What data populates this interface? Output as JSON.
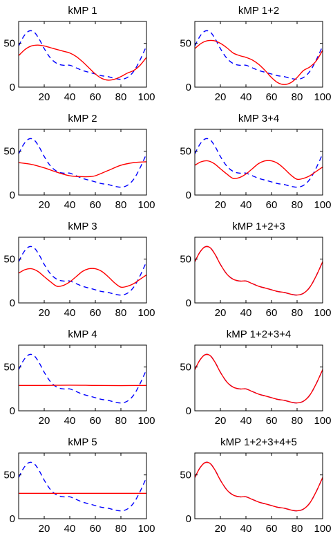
{
  "chart_data": [
    {
      "type": "line",
      "title": "kMP 1",
      "xlim": [
        0,
        100
      ],
      "ylim": [
        0,
        75
      ],
      "xticks": [
        20,
        40,
        60,
        80,
        100
      ],
      "yticks": [
        0,
        50
      ],
      "xtick_labels": [
        "20",
        "40",
        "60",
        "80",
        "100"
      ],
      "ytick_labels": [
        "0",
        "50"
      ],
      "series": [
        {
          "color": "#0000ff",
          "style": "dashed",
          "x": [
            0,
            4,
            8,
            12,
            16,
            20,
            25,
            30,
            35,
            40,
            45,
            50,
            55,
            60,
            65,
            70,
            75,
            80,
            85,
            90,
            95,
            100
          ],
          "y": [
            47,
            58,
            64,
            63,
            55,
            44,
            33,
            27,
            25,
            25,
            22,
            19,
            17,
            15,
            13,
            12,
            10,
            9,
            11,
            18,
            31,
            47
          ]
        },
        {
          "color": "#ff0000",
          "style": "solid",
          "x": [
            0,
            5,
            10,
            15,
            20,
            25,
            30,
            35,
            40,
            45,
            50,
            55,
            60,
            65,
            70,
            75,
            80,
            85,
            90,
            95,
            100
          ],
          "y": [
            36,
            43,
            47,
            48,
            47,
            45,
            43,
            41,
            39,
            35,
            29,
            22,
            15,
            10,
            8,
            9,
            12,
            16,
            19,
            25,
            34
          ]
        }
      ]
    },
    {
      "type": "line",
      "title": "kMP 1+2",
      "xlim": [
        0,
        100
      ],
      "ylim": [
        0,
        75
      ],
      "xticks": [
        20,
        40,
        60,
        80,
        100
      ],
      "yticks": [
        0,
        50
      ],
      "xtick_labels": [
        "20",
        "40",
        "60",
        "80",
        "100"
      ],
      "ytick_labels": [
        "0",
        "50"
      ],
      "series": [
        {
          "color": "#0000ff",
          "style": "dashed",
          "x": [
            0,
            4,
            8,
            12,
            16,
            20,
            25,
            30,
            35,
            40,
            45,
            50,
            55,
            60,
            65,
            70,
            75,
            80,
            85,
            90,
            95,
            100
          ],
          "y": [
            47,
            58,
            64,
            63,
            55,
            44,
            33,
            27,
            25,
            25,
            22,
            19,
            17,
            15,
            13,
            12,
            10,
            9,
            11,
            18,
            31,
            47
          ]
        },
        {
          "color": "#ff0000",
          "style": "solid",
          "x": [
            0,
            5,
            10,
            15,
            20,
            25,
            30,
            35,
            40,
            45,
            50,
            55,
            60,
            65,
            70,
            75,
            80,
            85,
            90,
            95,
            100
          ],
          "y": [
            44,
            50,
            53,
            53,
            50,
            45,
            39,
            36,
            34,
            31,
            26,
            19,
            11,
            5,
            3,
            5,
            11,
            19,
            23,
            30,
            42
          ]
        }
      ]
    },
    {
      "type": "line",
      "title": "kMP 2",
      "xlim": [
        0,
        100
      ],
      "ylim": [
        0,
        75
      ],
      "xticks": [
        20,
        40,
        60,
        80,
        100
      ],
      "yticks": [
        0,
        50
      ],
      "xtick_labels": [
        "20",
        "40",
        "60",
        "80",
        "100"
      ],
      "ytick_labels": [
        "0",
        "50"
      ],
      "series": [
        {
          "color": "#0000ff",
          "style": "dashed",
          "x": [
            0,
            4,
            8,
            12,
            16,
            20,
            25,
            30,
            35,
            40,
            45,
            50,
            55,
            60,
            65,
            70,
            75,
            80,
            85,
            90,
            95,
            100
          ],
          "y": [
            47,
            58,
            64,
            63,
            55,
            44,
            33,
            27,
            25,
            25,
            22,
            19,
            17,
            15,
            13,
            12,
            10,
            9,
            11,
            18,
            31,
            47
          ]
        },
        {
          "color": "#ff0000",
          "style": "solid",
          "x": [
            0,
            10,
            20,
            30,
            40,
            50,
            55,
            60,
            70,
            80,
            90,
            100
          ],
          "y": [
            37,
            35,
            31,
            26,
            22,
            21,
            21,
            22,
            28,
            34,
            37,
            38
          ]
        }
      ]
    },
    {
      "type": "line",
      "title": "kMP 3+4",
      "xlim": [
        0,
        100
      ],
      "ylim": [
        0,
        75
      ],
      "xticks": [
        20,
        40,
        60,
        80,
        100
      ],
      "yticks": [
        0,
        50
      ],
      "xtick_labels": [
        "20",
        "40",
        "60",
        "80",
        "100"
      ],
      "ytick_labels": [
        "0",
        "50"
      ],
      "series": [
        {
          "color": "#0000ff",
          "style": "dashed",
          "x": [
            0,
            4,
            8,
            12,
            16,
            20,
            25,
            30,
            35,
            40,
            45,
            50,
            55,
            60,
            65,
            70,
            75,
            80,
            85,
            90,
            95,
            100
          ],
          "y": [
            47,
            58,
            64,
            63,
            55,
            44,
            33,
            27,
            25,
            25,
            22,
            19,
            17,
            15,
            13,
            12,
            10,
            9,
            11,
            18,
            31,
            47
          ]
        },
        {
          "color": "#ff0000",
          "style": "solid",
          "x": [
            0,
            5,
            10,
            15,
            20,
            25,
            30,
            35,
            40,
            45,
            50,
            55,
            60,
            65,
            70,
            75,
            80,
            85,
            90,
            95,
            100
          ],
          "y": [
            34,
            38,
            39,
            36,
            30,
            24,
            19,
            20,
            24,
            30,
            36,
            39,
            39,
            36,
            30,
            23,
            18,
            19,
            22,
            27,
            32
          ]
        }
      ]
    },
    {
      "type": "line",
      "title": "kMP 3",
      "xlim": [
        0,
        100
      ],
      "ylim": [
        0,
        75
      ],
      "xticks": [
        20,
        40,
        60,
        80,
        100
      ],
      "yticks": [
        0,
        50
      ],
      "xtick_labels": [
        "20",
        "40",
        "60",
        "80",
        "100"
      ],
      "ytick_labels": [
        "0",
        "50"
      ],
      "series": [
        {
          "color": "#0000ff",
          "style": "dashed",
          "x": [
            0,
            4,
            8,
            12,
            16,
            20,
            25,
            30,
            35,
            40,
            45,
            50,
            55,
            60,
            65,
            70,
            75,
            80,
            85,
            90,
            95,
            100
          ],
          "y": [
            47,
            58,
            64,
            63,
            55,
            44,
            33,
            27,
            25,
            25,
            22,
            19,
            17,
            15,
            13,
            12,
            10,
            9,
            11,
            18,
            31,
            47
          ]
        },
        {
          "color": "#ff0000",
          "style": "solid",
          "x": [
            0,
            5,
            10,
            15,
            20,
            25,
            30,
            35,
            40,
            45,
            50,
            55,
            60,
            65,
            70,
            75,
            80,
            85,
            90,
            95,
            100
          ],
          "y": [
            34,
            38,
            39,
            36,
            30,
            24,
            19,
            20,
            24,
            30,
            36,
            39,
            39,
            36,
            30,
            23,
            18,
            19,
            22,
            27,
            32
          ]
        }
      ]
    },
    {
      "type": "line",
      "title": "kMP 1+2+3",
      "xlim": [
        0,
        100
      ],
      "ylim": [
        0,
        75
      ],
      "xticks": [
        20,
        40,
        60,
        80,
        100
      ],
      "yticks": [
        0,
        50
      ],
      "xtick_labels": [
        "20",
        "40",
        "60",
        "80",
        "100"
      ],
      "ytick_labels": [
        "0",
        "50"
      ],
      "series": [
        {
          "color": "#0000ff",
          "style": "dashed",
          "x": [
            0,
            4,
            8,
            12,
            16,
            20,
            25,
            30,
            35,
            40,
            45,
            50,
            55,
            60,
            65,
            70,
            75,
            80,
            85,
            90,
            95,
            100
          ],
          "y": [
            47,
            58,
            64,
            63,
            55,
            44,
            33,
            27,
            25,
            25,
            22,
            19,
            17,
            15,
            13,
            12,
            10,
            9,
            11,
            18,
            31,
            47
          ]
        },
        {
          "color": "#ff0000",
          "style": "solid",
          "x": [
            0,
            4,
            8,
            12,
            16,
            20,
            25,
            30,
            35,
            40,
            45,
            50,
            55,
            60,
            65,
            70,
            75,
            80,
            85,
            90,
            95,
            100
          ],
          "y": [
            47,
            58,
            64,
            63,
            55,
            44,
            33,
            27,
            25,
            25,
            22,
            19,
            17,
            15,
            13,
            12,
            10,
            9,
            11,
            18,
            31,
            47
          ]
        }
      ]
    },
    {
      "type": "line",
      "title": "kMP 4",
      "xlim": [
        0,
        100
      ],
      "ylim": [
        0,
        75
      ],
      "xticks": [
        20,
        40,
        60,
        80,
        100
      ],
      "yticks": [
        0,
        50
      ],
      "xtick_labels": [
        "20",
        "40",
        "60",
        "80",
        "100"
      ],
      "ytick_labels": [
        "0",
        "50"
      ],
      "series": [
        {
          "color": "#0000ff",
          "style": "dashed",
          "x": [
            0,
            4,
            8,
            12,
            16,
            20,
            25,
            30,
            35,
            40,
            45,
            50,
            55,
            60,
            65,
            70,
            75,
            80,
            85,
            90,
            95,
            100
          ],
          "y": [
            47,
            58,
            64,
            63,
            55,
            44,
            33,
            27,
            25,
            25,
            22,
            19,
            17,
            15,
            13,
            12,
            10,
            9,
            11,
            18,
            31,
            47
          ]
        },
        {
          "color": "#ff0000",
          "style": "solid",
          "x": [
            0,
            20,
            40,
            60,
            80,
            100
          ],
          "y": [
            29,
            29,
            29.3,
            29,
            28.8,
            29
          ]
        }
      ]
    },
    {
      "type": "line",
      "title": "kMP 1+2+3+4",
      "xlim": [
        0,
        100
      ],
      "ylim": [
        0,
        75
      ],
      "xticks": [
        20,
        40,
        60,
        80,
        100
      ],
      "yticks": [
        0,
        50
      ],
      "xtick_labels": [
        "20",
        "40",
        "60",
        "80",
        "100"
      ],
      "ytick_labels": [
        "0",
        "50"
      ],
      "series": [
        {
          "color": "#0000ff",
          "style": "dashed",
          "x": [
            0,
            4,
            8,
            12,
            16,
            20,
            25,
            30,
            35,
            40,
            45,
            50,
            55,
            60,
            65,
            70,
            75,
            80,
            85,
            90,
            95,
            100
          ],
          "y": [
            47,
            58,
            64,
            63,
            55,
            44,
            33,
            27,
            25,
            25,
            22,
            19,
            17,
            15,
            13,
            12,
            10,
            9,
            11,
            18,
            31,
            47
          ]
        },
        {
          "color": "#ff0000",
          "style": "solid",
          "x": [
            0,
            4,
            8,
            12,
            16,
            20,
            25,
            30,
            35,
            40,
            45,
            50,
            55,
            60,
            65,
            70,
            75,
            80,
            85,
            90,
            95,
            100
          ],
          "y": [
            47,
            58,
            64,
            63,
            55,
            44,
            33,
            27,
            25,
            25,
            22,
            19,
            17,
            15,
            13,
            12,
            10,
            9,
            11,
            18,
            31,
            47
          ]
        }
      ]
    },
    {
      "type": "line",
      "title": "kMP 5",
      "xlim": [
        0,
        100
      ],
      "ylim": [
        0,
        75
      ],
      "xticks": [
        20,
        40,
        60,
        80,
        100
      ],
      "yticks": [
        0,
        50
      ],
      "xtick_labels": [
        "20",
        "40",
        "60",
        "80",
        "100"
      ],
      "ytick_labels": [
        "0",
        "50"
      ],
      "series": [
        {
          "color": "#0000ff",
          "style": "dashed",
          "x": [
            0,
            4,
            8,
            12,
            16,
            20,
            25,
            30,
            35,
            40,
            45,
            50,
            55,
            60,
            65,
            70,
            75,
            80,
            85,
            90,
            95,
            100
          ],
          "y": [
            47,
            58,
            64,
            63,
            55,
            44,
            33,
            27,
            25,
            25,
            22,
            19,
            17,
            15,
            13,
            12,
            10,
            9,
            11,
            18,
            31,
            47
          ]
        },
        {
          "color": "#ff0000",
          "style": "solid",
          "x": [
            0,
            100
          ],
          "y": [
            29,
            29
          ]
        }
      ]
    },
    {
      "type": "line",
      "title": "kMP 1+2+3+4+5",
      "xlim": [
        0,
        100
      ],
      "ylim": [
        0,
        75
      ],
      "xticks": [
        20,
        40,
        60,
        80,
        100
      ],
      "yticks": [
        0,
        50
      ],
      "xtick_labels": [
        "20",
        "40",
        "60",
        "80",
        "100"
      ],
      "ytick_labels": [
        "0",
        "50"
      ],
      "series": [
        {
          "color": "#0000ff",
          "style": "dashed",
          "x": [
            0,
            4,
            8,
            12,
            16,
            20,
            25,
            30,
            35,
            40,
            45,
            50,
            55,
            60,
            65,
            70,
            75,
            80,
            85,
            90,
            95,
            100
          ],
          "y": [
            47,
            58,
            64,
            63,
            55,
            44,
            33,
            27,
            25,
            25,
            22,
            19,
            17,
            15,
            13,
            12,
            10,
            9,
            11,
            18,
            31,
            47
          ]
        },
        {
          "color": "#ff0000",
          "style": "solid",
          "x": [
            0,
            4,
            8,
            12,
            16,
            20,
            25,
            30,
            35,
            40,
            45,
            50,
            55,
            60,
            65,
            70,
            75,
            80,
            85,
            90,
            95,
            100
          ],
          "y": [
            47,
            58,
            64,
            63,
            55,
            44,
            33,
            27,
            25,
            25,
            22,
            19,
            17,
            15,
            13,
            12,
            10,
            9,
            11,
            18,
            31,
            47
          ]
        }
      ]
    }
  ]
}
